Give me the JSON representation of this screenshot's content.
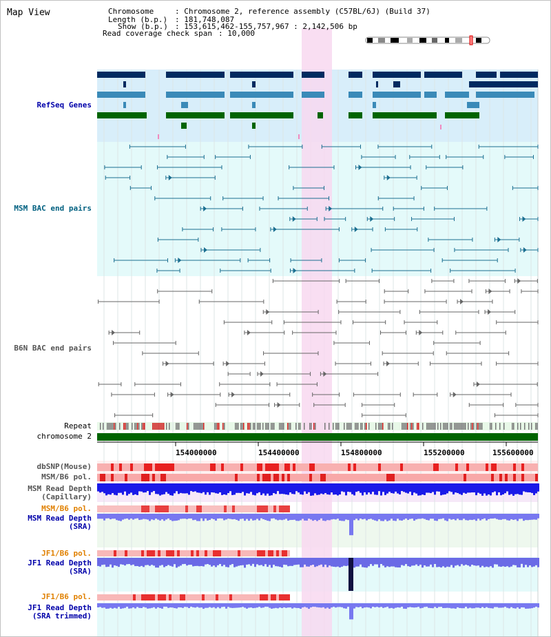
{
  "title": "Map View",
  "info": {
    "chromosome_label": "Chromosome",
    "chromosome_value": ": Chromosome 2, reference assembly (C57BL/6J) (Build 37)",
    "length_label": "Length (b.p.)",
    "length_value": ": 181,748,087",
    "show_label": "Show (b.p.)",
    "show_value": ": 153,615,462-155,757,967 : 2,142,506 bp",
    "coverage_label": "Read coverage check span",
    "coverage_value": ": 10,000"
  },
  "tracks": {
    "refseq": "RefSeq Genes",
    "msm_bac": "MSM BAC end pairs",
    "b6n_bac": "B6N BAC end pairs",
    "repeat": "Repeat",
    "chromosome": "chromosome 2",
    "dbsnp": "dbSNP(Mouse)",
    "msm_b6_pol_1": "MSM/B6 pol.",
    "msm_depth_cap": "MSM Read Depth\n(Capillary)",
    "msm_b6_pol_2": "MSM/B6 pol.",
    "msm_depth_sra": "MSM Read Depth\n(SRA)",
    "jf1_b6_pol_1": "JF1/B6 pol.",
    "jf1_depth_sra": "JF1 Read Depth\n(SRA)",
    "jf1_b6_pol_2": "JF1/B6 pol.",
    "jf1_depth_trim": "JF1 Read Depth\n(SRA trimmed)"
  },
  "ticks": [
    "154000000",
    "154400000",
    "154800000",
    "155200000",
    "155600000"
  ],
  "colors": {
    "refseq_label": "#0000aa",
    "msm_label": "#006080",
    "b6n_label": "#555555",
    "orange_label": "#e08000",
    "highlight": "#f8d8f0",
    "chromosome_bar": "#006400"
  }
}
